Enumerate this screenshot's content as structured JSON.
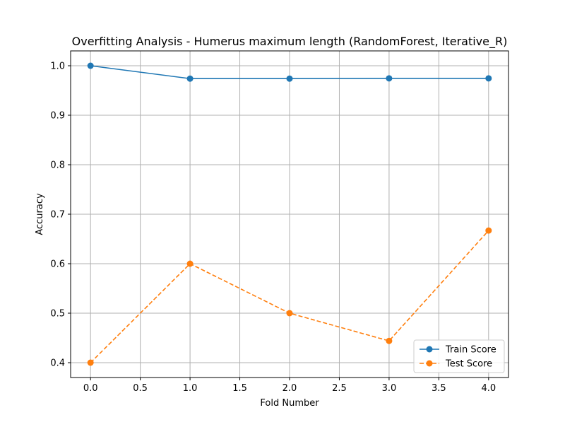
{
  "chart_data": {
    "type": "line",
    "title": "Overfitting Analysis - Humerus maximum length (RandomForest, Iterative_R)",
    "xlabel": "Fold Number",
    "ylabel": "Accuracy",
    "x": [
      0,
      1,
      2,
      3,
      4
    ],
    "xlim": [
      -0.2,
      4.2
    ],
    "ylim": [
      0.37,
      1.03
    ],
    "xticks": [
      0.0,
      0.5,
      1.0,
      1.5,
      2.0,
      2.5,
      3.0,
      3.5,
      4.0
    ],
    "xtick_labels": [
      "0.0",
      "0.5",
      "1.0",
      "1.5",
      "2.0",
      "2.5",
      "3.0",
      "3.5",
      "4.0"
    ],
    "yticks": [
      0.4,
      0.5,
      0.6,
      0.7,
      0.8,
      0.9,
      1.0
    ],
    "ytick_labels": [
      "0.4",
      "0.5",
      "0.6",
      "0.7",
      "0.8",
      "0.9",
      "1.0"
    ],
    "grid": true,
    "legend_position": "lower-right",
    "series": [
      {
        "name": "Train Score",
        "values": [
          1.0,
          0.974,
          0.974,
          0.9745,
          0.9745
        ],
        "color": "#1f77b4",
        "line_style": "solid",
        "marker": "circle"
      },
      {
        "name": "Test Score",
        "values": [
          0.4,
          0.6,
          0.5,
          0.444,
          0.667
        ],
        "color": "#ff7f0e",
        "line_style": "dashed",
        "marker": "circle"
      }
    ]
  }
}
